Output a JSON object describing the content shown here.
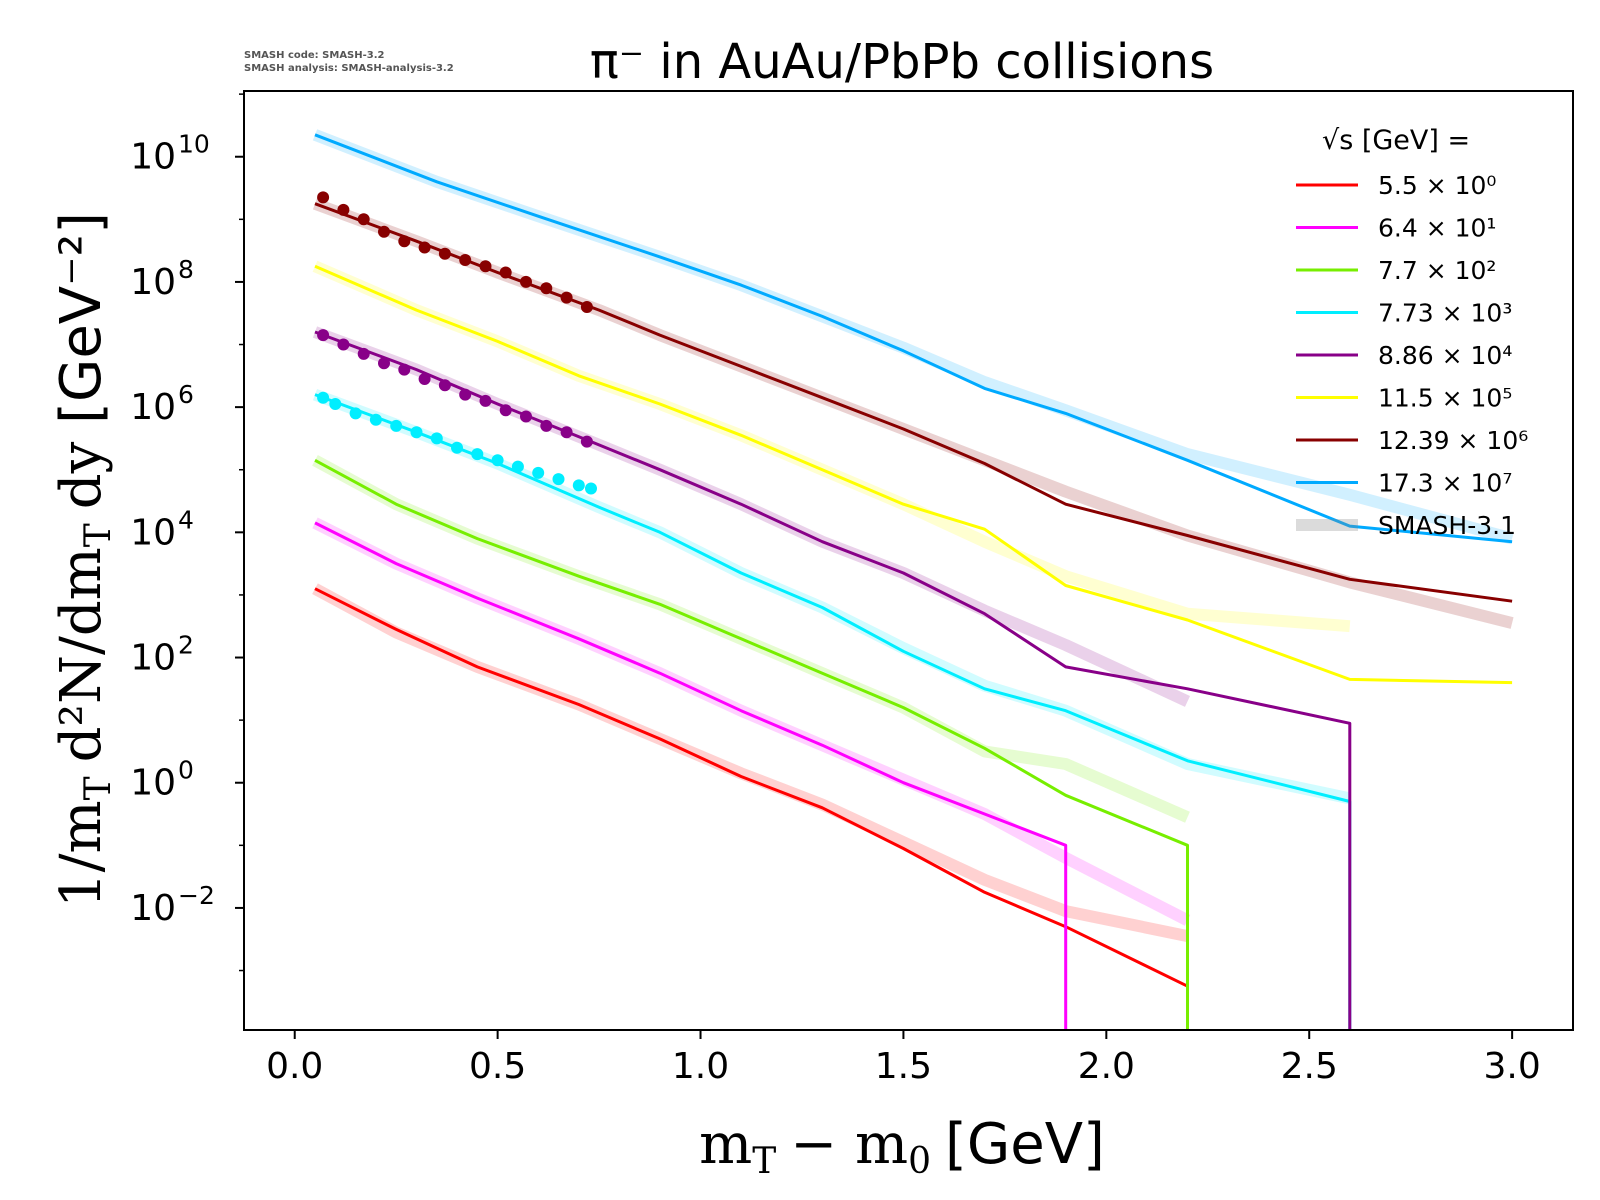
{
  "credits": {
    "line1": "SMASH code:      SMASH-3.2",
    "line2": "SMASH analysis: SMASH-analysis-3.2"
  },
  "chart_data": {
    "type": "line",
    "title": "π⁻ in AuAu/PbPb collisions",
    "xlabel": "m_T − m_0 [GeV]",
    "ylabel": "1/m_T d²N/dm_T dy [GeV⁻²]",
    "yscale": "log",
    "xlim": [
      -0.125,
      3.15
    ],
    "ylim_log10": [
      -3.95,
      11.05
    ],
    "x_ticks": [
      "0.0",
      "0.5",
      "1.0",
      "1.5",
      "2.0",
      "2.5",
      "3.0"
    ],
    "y_ticks": [
      {
        "base": "10",
        "exp": "10"
      },
      {
        "base": "10",
        "exp": "8"
      },
      {
        "base": "10",
        "exp": "6"
      },
      {
        "base": "10",
        "exp": "4"
      },
      {
        "base": "10",
        "exp": "2"
      },
      {
        "base": "10",
        "exp": "0"
      },
      {
        "base": "10",
        "exp": "−2"
      }
    ],
    "grid": false,
    "legend": {
      "position": "top-right",
      "title": "√s  [GeV] =",
      "reference_label": "SMASH-3.1"
    },
    "series": [
      {
        "name": "5.5 × 10⁰",
        "color": "#ff0000",
        "x": [
          0.05,
          0.25,
          0.45,
          0.7,
          0.9,
          1.1,
          1.3,
          1.5,
          1.7,
          1.9,
          2.2
        ],
        "log10_y": [
          3.1,
          2.45,
          1.85,
          1.25,
          0.7,
          0.1,
          -0.4,
          -1.05,
          -1.75,
          -2.3,
          -3.25
        ],
        "ref_log10_y": [
          3.1,
          2.4,
          1.85,
          1.25,
          0.7,
          0.15,
          -0.35,
          -0.95,
          -1.55,
          -2.05,
          -2.45
        ],
        "ref_x": [
          0.05,
          0.25,
          0.45,
          0.7,
          0.9,
          1.1,
          1.3,
          1.5,
          1.7,
          1.9,
          2.2
        ],
        "drop_x": null,
        "exp_points": null
      },
      {
        "name": "6.4 × 10¹",
        "color": "#ff00ff",
        "x": [
          0.05,
          0.25,
          0.45,
          0.7,
          0.9,
          1.1,
          1.3,
          1.5,
          1.7,
          1.9
        ],
        "log10_y": [
          4.15,
          3.5,
          2.95,
          2.3,
          1.75,
          1.15,
          0.6,
          0.0,
          -0.5,
          -1.0
        ],
        "ref_x": [
          0.05,
          0.25,
          0.45,
          0.7,
          0.9,
          1.1,
          1.3,
          1.5,
          1.7,
          1.9,
          2.2
        ],
        "ref_log10_y": [
          4.15,
          3.5,
          2.95,
          2.3,
          1.75,
          1.15,
          0.6,
          0.05,
          -0.5,
          -1.2,
          -2.2
        ],
        "drop_x": 1.9,
        "exp_points": null
      },
      {
        "name": "7.7 × 10²",
        "color": "#77ee00",
        "x": [
          0.05,
          0.25,
          0.45,
          0.7,
          0.9,
          1.1,
          1.3,
          1.5,
          1.7,
          1.9,
          2.2
        ],
        "log10_y": [
          5.15,
          4.45,
          3.9,
          3.3,
          2.85,
          2.3,
          1.75,
          1.2,
          0.55,
          -0.2,
          -1.0
        ],
        "ref_x": [
          0.05,
          0.25,
          0.45,
          0.7,
          0.9,
          1.1,
          1.3,
          1.5,
          1.7,
          1.9,
          2.2
        ],
        "ref_log10_y": [
          5.15,
          4.45,
          3.9,
          3.3,
          2.85,
          2.3,
          1.75,
          1.2,
          0.5,
          0.3,
          -0.55
        ],
        "drop_x": 2.2,
        "exp_points": null
      },
      {
        "name": "7.73 × 10³",
        "color": "#00eeff",
        "x": [
          0.05,
          0.3,
          0.5,
          0.75,
          0.9,
          1.1,
          1.3,
          1.5,
          1.7,
          1.9,
          2.2,
          2.6
        ],
        "log10_y": [
          6.2,
          5.6,
          5.1,
          4.4,
          4.0,
          3.35,
          2.8,
          2.1,
          1.5,
          1.15,
          0.35,
          -0.3
        ],
        "ref_x": [
          0.05,
          0.3,
          0.5,
          0.75,
          0.9,
          1.1,
          1.3,
          1.5,
          1.7,
          1.9,
          2.2,
          2.6
        ],
        "ref_log10_y": [
          6.2,
          5.6,
          5.1,
          4.4,
          4.0,
          3.35,
          2.8,
          2.15,
          1.55,
          1.15,
          0.3,
          -0.25
        ],
        "drop_x": 2.6,
        "exp_points": {
          "x": [
            0.07,
            0.1,
            0.15,
            0.2,
            0.25,
            0.3,
            0.35,
            0.4,
            0.45,
            0.5,
            0.55,
            0.6,
            0.65,
            0.7,
            0.73
          ],
          "log10_y": [
            6.15,
            6.05,
            5.9,
            5.8,
            5.7,
            5.6,
            5.5,
            5.35,
            5.25,
            5.15,
            5.05,
            4.95,
            4.85,
            4.75,
            4.7
          ]
        }
      },
      {
        "name": "8.86 × 10⁴",
        "color": "#880088",
        "x": [
          0.05,
          0.3,
          0.5,
          0.73,
          0.9,
          1.1,
          1.3,
          1.5,
          1.7,
          1.9,
          2.2,
          2.6
        ],
        "log10_y": [
          7.2,
          6.6,
          6.05,
          5.45,
          5.0,
          4.45,
          3.85,
          3.35,
          2.7,
          1.85,
          1.5,
          0.95
        ],
        "ref_x": [
          0.05,
          0.3,
          0.5,
          0.73,
          0.9,
          1.1,
          1.3,
          1.5,
          1.7,
          1.9,
          2.2
        ],
        "ref_log10_y": [
          7.2,
          6.6,
          6.05,
          5.45,
          5.0,
          4.45,
          3.85,
          3.35,
          2.75,
          2.2,
          1.3
        ],
        "drop_x": 2.6,
        "exp_points": {
          "x": [
            0.07,
            0.12,
            0.17,
            0.22,
            0.27,
            0.32,
            0.37,
            0.42,
            0.47,
            0.52,
            0.57,
            0.62,
            0.67,
            0.72
          ],
          "log10_y": [
            7.15,
            7.0,
            6.85,
            6.7,
            6.6,
            6.45,
            6.35,
            6.2,
            6.1,
            5.95,
            5.85,
            5.7,
            5.6,
            5.45
          ]
        }
      },
      {
        "name": "11.5 × 10⁵",
        "color": "#ffff00",
        "x": [
          0.05,
          0.3,
          0.5,
          0.7,
          0.9,
          1.1,
          1.3,
          1.5,
          1.7,
          1.9,
          2.2,
          2.6,
          3.0
        ],
        "log10_y": [
          8.25,
          7.55,
          7.05,
          6.5,
          6.05,
          5.55,
          5.0,
          4.45,
          4.05,
          3.15,
          2.6,
          1.65,
          1.6
        ],
        "ref_x": [
          0.05,
          0.3,
          0.5,
          0.7,
          0.9,
          1.1,
          1.3,
          1.5,
          1.7,
          1.9,
          2.2,
          2.6
        ],
        "ref_log10_y": [
          8.25,
          7.55,
          7.05,
          6.5,
          6.05,
          5.55,
          5.0,
          4.45,
          3.85,
          3.3,
          2.7,
          2.5
        ],
        "drop_x": null,
        "exp_points": null
      },
      {
        "name": "12.39 × 10⁶",
        "color": "#880000",
        "x": [
          0.05,
          0.3,
          0.5,
          0.75,
          0.9,
          1.1,
          1.3,
          1.5,
          1.7,
          1.9,
          2.2,
          2.6,
          3.0
        ],
        "log10_y": [
          9.25,
          8.65,
          8.15,
          7.55,
          7.15,
          6.65,
          6.15,
          5.65,
          5.1,
          4.45,
          3.95,
          3.25,
          2.9
        ],
        "ref_x": [
          0.05,
          0.3,
          0.5,
          0.75,
          0.9,
          1.1,
          1.3,
          1.5,
          1.7,
          1.9,
          2.2,
          2.6,
          3.0
        ],
        "ref_log10_y": [
          9.25,
          8.65,
          8.15,
          7.55,
          7.15,
          6.65,
          6.15,
          5.65,
          5.15,
          4.65,
          3.95,
          3.2,
          2.55
        ],
        "drop_x": null,
        "exp_points": {
          "x": [
            0.07,
            0.12,
            0.17,
            0.22,
            0.27,
            0.32,
            0.37,
            0.42,
            0.47,
            0.52,
            0.57,
            0.62,
            0.67,
            0.72
          ],
          "log10_y": [
            9.35,
            9.15,
            9.0,
            8.8,
            8.65,
            8.55,
            8.45,
            8.35,
            8.25,
            8.15,
            8.0,
            7.9,
            7.75,
            7.6
          ]
        }
      },
      {
        "name": "17.3 × 10⁷",
        "color": "#00aaff",
        "x": [
          0.05,
          0.35,
          0.6,
          0.9,
          1.1,
          1.3,
          1.5,
          1.7,
          1.9,
          2.2,
          2.6,
          3.0
        ],
        "log10_y": [
          10.35,
          9.6,
          9.05,
          8.4,
          7.95,
          7.45,
          6.9,
          6.3,
          5.9,
          5.15,
          4.1,
          3.85
        ],
        "ref_x": [
          0.05,
          0.35,
          0.6,
          0.9,
          1.1,
          1.3,
          1.5,
          1.7,
          1.9,
          2.2,
          2.6,
          3.0
        ],
        "ref_log10_y": [
          10.35,
          9.6,
          9.05,
          8.4,
          7.95,
          7.45,
          6.95,
          6.4,
          5.95,
          5.25,
          4.6,
          3.9
        ],
        "drop_x": null,
        "exp_points": null
      }
    ]
  }
}
